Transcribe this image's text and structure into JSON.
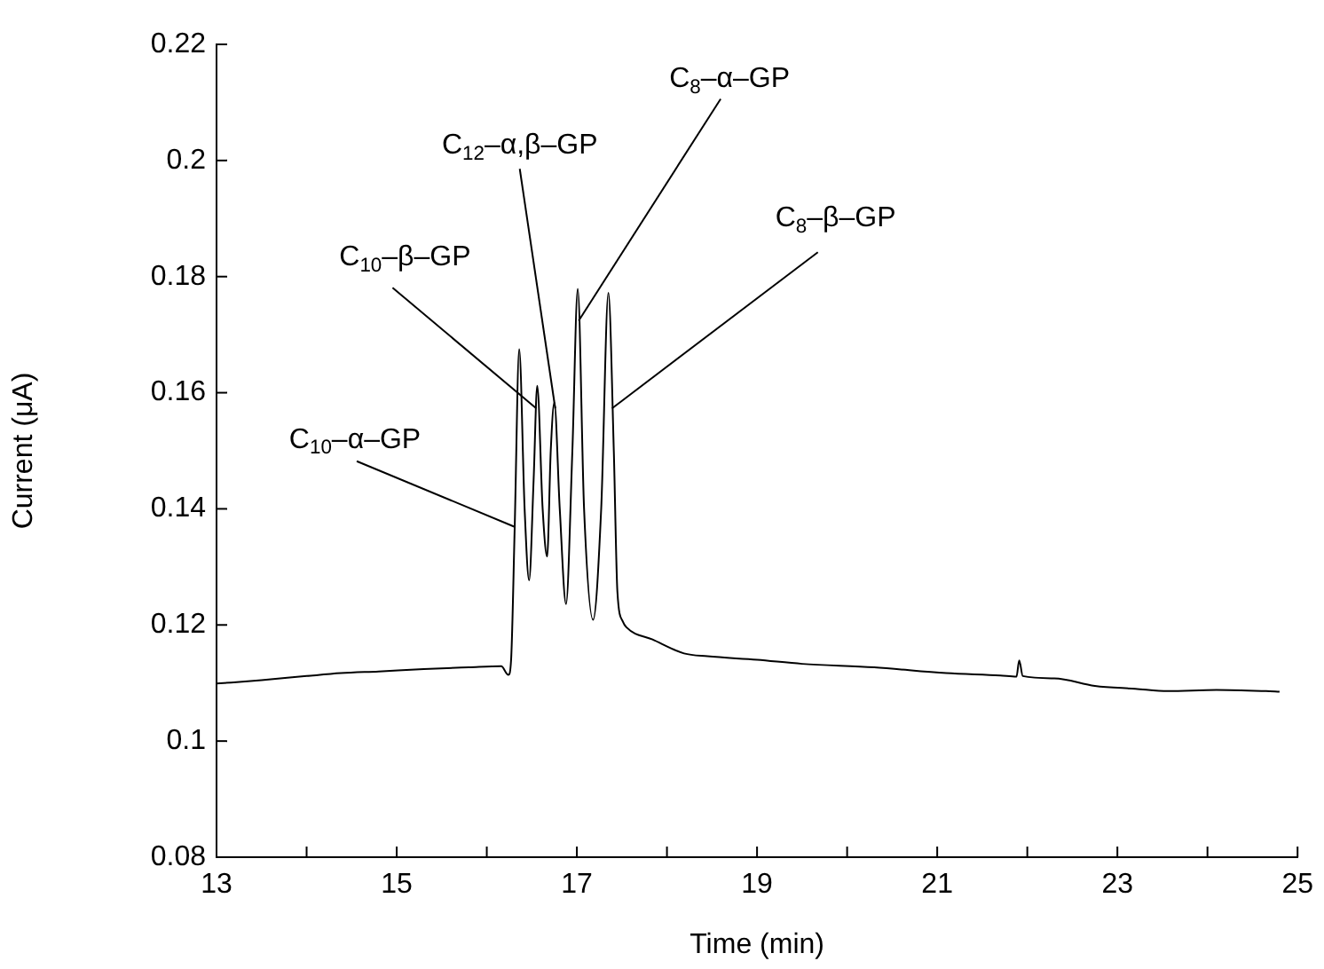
{
  "chart_data": {
    "type": "line",
    "xlabel": "Time (min)",
    "ylabel": "Current (μA)",
    "x": [
      13,
      13.5,
      14,
      14.38,
      14.8,
      15.3,
      15.8,
      16.16,
      16.24,
      16.27,
      16.31,
      16.36,
      16.42,
      16.47,
      16.52,
      16.56,
      16.62,
      16.67,
      16.71,
      16.75,
      16.81,
      16.88,
      16.95,
      17.01,
      17.08,
      17.18,
      17.27,
      17.35,
      17.41,
      17.45,
      17.51,
      17.55,
      17.84,
      18.19,
      18.45,
      19,
      19.5,
      20.3,
      21.1,
      21.7,
      21.88,
      21.91,
      21.95,
      22.3,
      22.75,
      23.2,
      23.56,
      24.1,
      24.65,
      24.8
    ],
    "series": [
      {
        "color": "#000000",
        "values": [
          0.1099,
          0.1105,
          0.1112,
          0.1117,
          0.112,
          0.1124,
          0.1127,
          0.1129,
          0.1114,
          0.114,
          0.1369,
          0.1675,
          0.14,
          0.1277,
          0.145,
          0.1612,
          0.14,
          0.1318,
          0.15,
          0.1583,
          0.14,
          0.1236,
          0.15,
          0.1779,
          0.14,
          0.1209,
          0.14,
          0.1772,
          0.15,
          0.1257,
          0.1206,
          0.1196,
          0.1175,
          0.1151,
          0.1146,
          0.114,
          0.1133,
          0.1127,
          0.1117,
          0.1113,
          0.1111,
          0.1139,
          0.1112,
          0.1108,
          0.1095,
          0.109,
          0.1086,
          0.1088,
          0.1086,
          0.1085
        ]
      }
    ],
    "xlim": [
      13,
      25
    ],
    "xticks": [
      13,
      {
        "value": 14,
        "label": null
      },
      15,
      {
        "value": 16,
        "label": null
      },
      17,
      {
        "value": 18,
        "label": null
      },
      19,
      {
        "value": 20,
        "label": null
      },
      21,
      {
        "value": 22,
        "label": null
      },
      23,
      {
        "value": 24,
        "label": null
      },
      25
    ],
    "ylim": [
      0.08,
      0.22
    ],
    "yticks": [
      0.08,
      0.1,
      0.12,
      0.14,
      0.16,
      0.18,
      0.2,
      0.22
    ],
    "grid": false,
    "legend": false,
    "marker": "none",
    "line_style": "solid",
    "annotations": [
      {
        "text": "C$_{10}$–α–GP",
        "x": 16.31,
        "y": 0.1369
      },
      {
        "text": "C$_{10}$–β–GP",
        "x": 16.55,
        "y": 0.1573
      },
      {
        "text": "C$_{12}$–α,β–GP",
        "x": 16.76,
        "y": 0.1573
      },
      {
        "text": "C$_{8}$–α–GP",
        "x": 17.02,
        "y": 0.1724
      },
      {
        "text": "C$_{8}$–β–GP",
        "x": 17.39,
        "y": 0.1573
      }
    ]
  }
}
